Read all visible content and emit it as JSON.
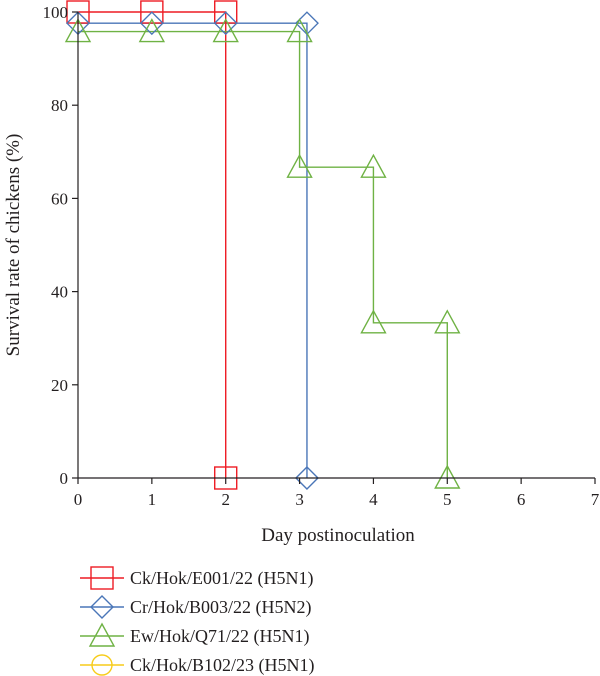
{
  "chart_data": {
    "type": "line",
    "step": true,
    "xlabel": "Day postinoculation",
    "ylabel": "Survival rate of chickens (%)",
    "xlim": [
      0,
      7
    ],
    "ylim": [
      0,
      100
    ],
    "xticks": [
      "0",
      "1",
      "2",
      "3",
      "4",
      "5",
      "6",
      "7"
    ],
    "yticks": [
      "0",
      "20",
      "40",
      "60",
      "80",
      "100"
    ],
    "grid": false,
    "legend_position": "bottom",
    "series": [
      {
        "name": "Ck/Hok/E001/22 (H5N1)",
        "color": "#ee1c24",
        "marker": "square",
        "x": [
          0,
          1,
          2,
          2
        ],
        "y": [
          100,
          100,
          100,
          0
        ]
      },
      {
        "name": "Cr/Hok/B003/22 (H5N2)",
        "color": "#4a76b8",
        "marker": "diamond",
        "x": [
          0,
          1,
          2,
          3.1,
          3.1
        ],
        "y": [
          97.6,
          97.6,
          97.6,
          97.6,
          0
        ]
      },
      {
        "name": "Ew/Hok/Q71/22 (H5N1)",
        "color": "#6fb244",
        "marker": "triangle",
        "x": [
          0,
          1,
          2,
          3,
          3,
          4,
          4,
          5,
          5
        ],
        "y": [
          95.8,
          95.8,
          95.8,
          95.8,
          66.7,
          66.7,
          33.3,
          33.3,
          0
        ]
      },
      {
        "name": "Ck/Hok/B102/23 (H5N1)",
        "color": "#f7cc1a",
        "marker": "circle",
        "x": [],
        "y": []
      }
    ]
  }
}
